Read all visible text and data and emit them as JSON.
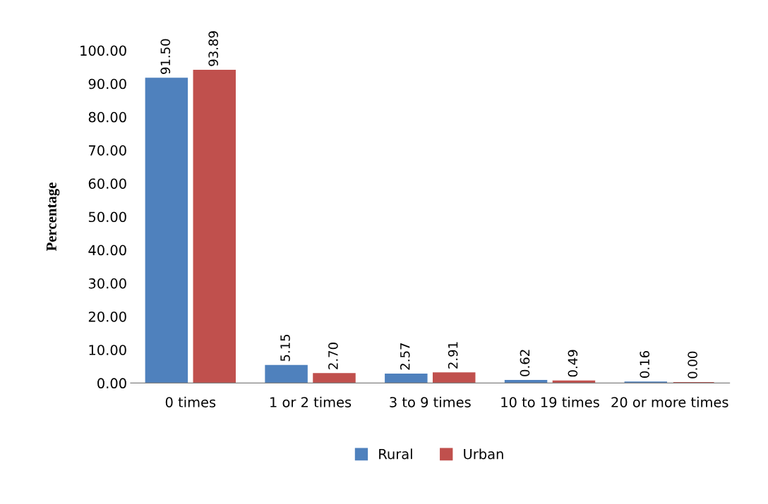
{
  "chart_data": {
    "type": "bar",
    "ylabel": "Percentage",
    "categories": [
      "0 times",
      "1 or 2 times",
      "3 to 9 times",
      "10 to 19 times",
      "20 or more times"
    ],
    "series": [
      {
        "name": "Rural",
        "color": "#4f81bd",
        "values": [
          91.5,
          5.15,
          2.57,
          0.62,
          0.16
        ],
        "value_labels": [
          "91.50",
          "5.15",
          "2.57",
          "0.62",
          "0.16"
        ]
      },
      {
        "name": "Urban",
        "color": "#c0504d",
        "values": [
          93.89,
          2.7,
          2.91,
          0.49,
          0.0
        ],
        "value_labels": [
          "93.89",
          "2.70",
          "2.91",
          "0.49",
          "0.00"
        ]
      }
    ],
    "ylim": [
      0,
      100
    ],
    "yticks": [
      {
        "value": 0,
        "label": "0.00"
      },
      {
        "value": 10,
        "label": "10.00"
      },
      {
        "value": 20,
        "label": "20.00"
      },
      {
        "value": 30,
        "label": "30.00"
      },
      {
        "value": 40,
        "label": "40.00"
      },
      {
        "value": 50,
        "label": "50.00"
      },
      {
        "value": 60,
        "label": "60.00"
      },
      {
        "value": 70,
        "label": "70.00"
      },
      {
        "value": 80,
        "label": "80.00"
      },
      {
        "value": 90,
        "label": "90.00"
      },
      {
        "value": 100,
        "label": "100.00"
      }
    ],
    "grid": false,
    "legend": "bottom"
  }
}
